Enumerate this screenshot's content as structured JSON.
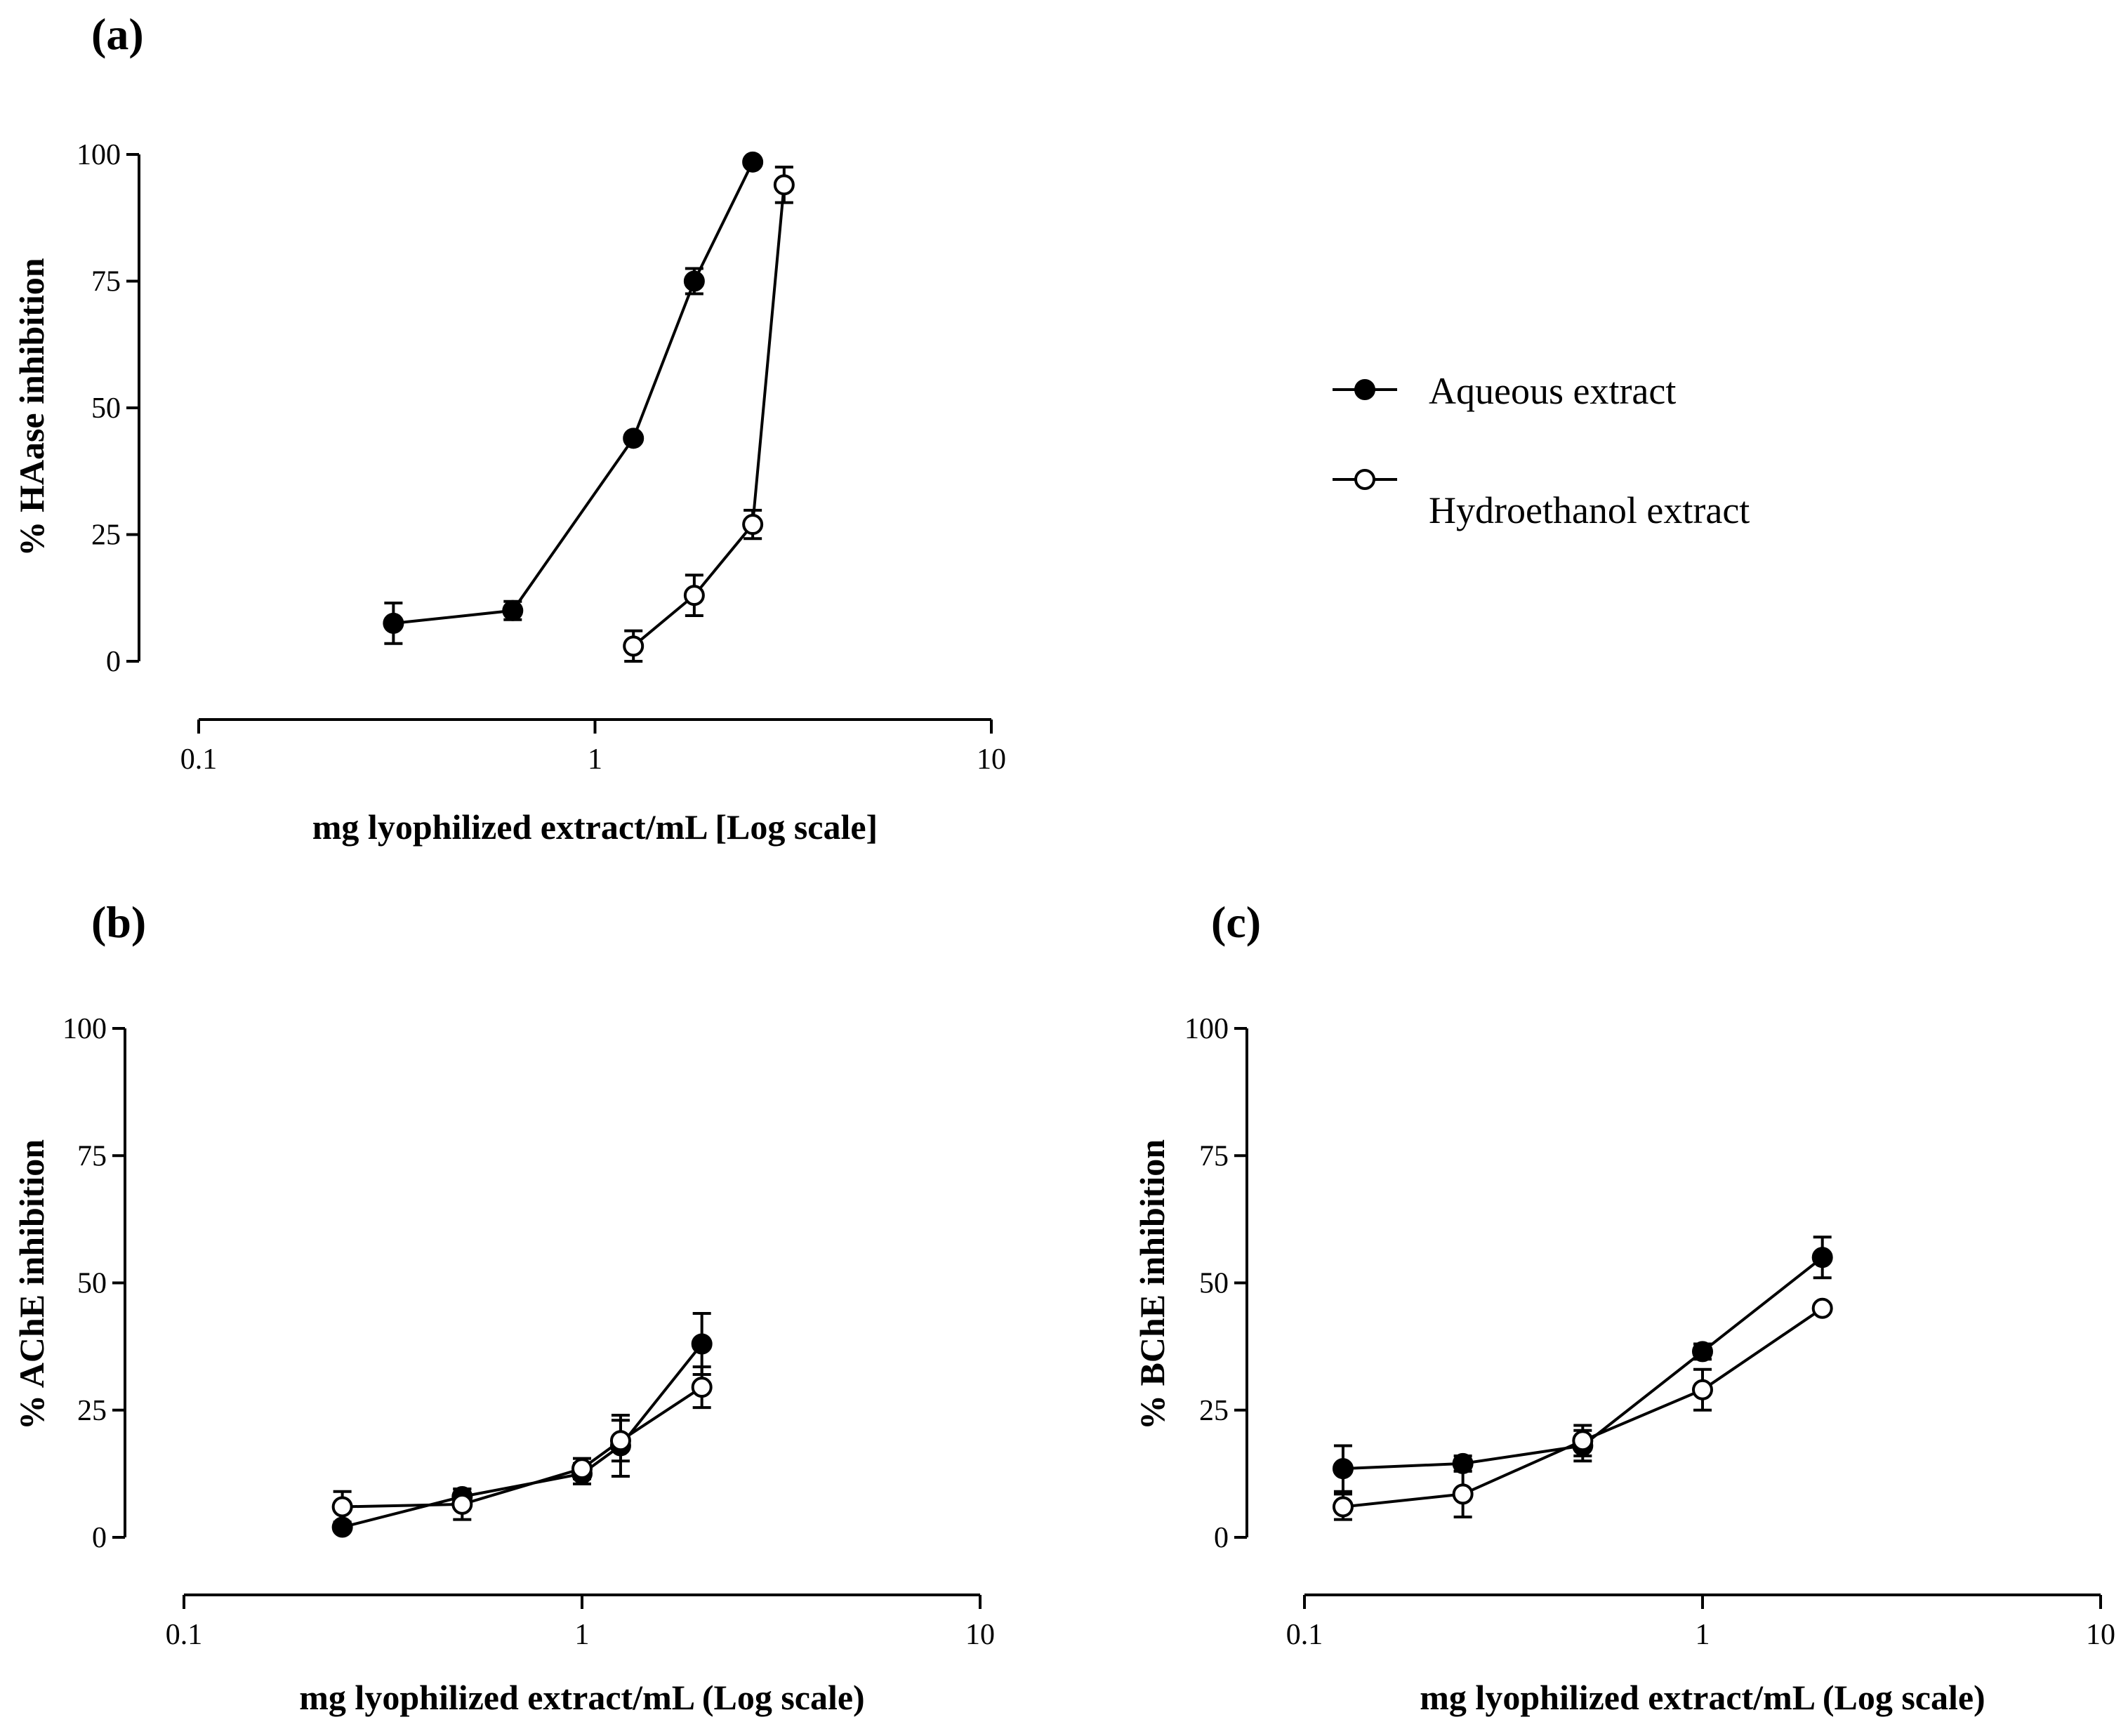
{
  "figure": {
    "legend": {
      "items": [
        {
          "label": "Aqueous extract",
          "marker": "filled-circle"
        },
        {
          "label": "Hydroethanol extract",
          "marker": "open-circle"
        }
      ]
    }
  },
  "chart_data": [
    {
      "id": "a",
      "panel_label": "(a)",
      "type": "line",
      "xscale": "log",
      "xlim": [
        0.1,
        10
      ],
      "ylim": [
        0,
        100
      ],
      "xticks": [
        {
          "v": 0.1,
          "label": "0.1"
        },
        {
          "v": 1,
          "label": "1"
        },
        {
          "v": 10,
          "label": "10"
        }
      ],
      "yticks": [
        {
          "v": 0,
          "label": "0"
        },
        {
          "v": 25,
          "label": "25"
        },
        {
          "v": 50,
          "label": "50"
        },
        {
          "v": 75,
          "label": "75"
        },
        {
          "v": 100,
          "label": "100"
        }
      ],
      "xlabel": "mg lyophilized extract/mL [Log scale]",
      "ylabel": "% HAase inhibition",
      "series": [
        {
          "name": "Aqueous extract",
          "filled": true,
          "x": [
            0.31,
            0.62,
            1.25,
            1.78,
            2.5
          ],
          "y": [
            7.5,
            10,
            44,
            75,
            98.5
          ],
          "err": [
            4,
            1.8,
            0,
            2.5,
            0
          ]
        },
        {
          "name": "Hydroethanol extract",
          "filled": false,
          "x": [
            1.25,
            1.78,
            2.5,
            3.0
          ],
          "y": [
            3,
            13,
            27,
            94
          ],
          "err": [
            3,
            4,
            2.8,
            3.5
          ]
        }
      ]
    },
    {
      "id": "b",
      "panel_label": "(b)",
      "type": "line",
      "xscale": "log",
      "xlim": [
        0.1,
        10
      ],
      "ylim": [
        0,
        100
      ],
      "xticks": [
        {
          "v": 0.1,
          "label": "0.1"
        },
        {
          "v": 1,
          "label": "1"
        },
        {
          "v": 10,
          "label": "10"
        }
      ],
      "yticks": [
        {
          "v": 0,
          "label": "0"
        },
        {
          "v": 25,
          "label": "25"
        },
        {
          "v": 50,
          "label": "50"
        },
        {
          "v": 75,
          "label": "75"
        },
        {
          "v": 100,
          "label": "100"
        }
      ],
      "xlabel": "mg lyophilized extract/mL (Log scale)",
      "ylabel": "% AChE inhibition",
      "series": [
        {
          "name": "Aqueous extract",
          "filled": true,
          "x": [
            0.25,
            0.5,
            1.0,
            1.25,
            2.0
          ],
          "y": [
            2,
            8,
            12.5,
            18,
            38
          ],
          "err": [
            0,
            1.5,
            2,
            6,
            6
          ]
        },
        {
          "name": "Hydroethanol extract",
          "filled": false,
          "x": [
            0.25,
            0.5,
            1.0,
            1.25,
            2.0
          ],
          "y": [
            6,
            6.5,
            13.5,
            19,
            29.5
          ],
          "err": [
            3,
            3,
            2,
            4,
            4
          ]
        }
      ]
    },
    {
      "id": "c",
      "panel_label": "(c)",
      "type": "line",
      "xscale": "log",
      "xlim": [
        0.1,
        10
      ],
      "ylim": [
        0,
        100
      ],
      "xticks": [
        {
          "v": 0.1,
          "label": "0.1"
        },
        {
          "v": 1,
          "label": "1"
        },
        {
          "v": 10,
          "label": "10"
        }
      ],
      "yticks": [
        {
          "v": 0,
          "label": "0"
        },
        {
          "v": 25,
          "label": "25"
        },
        {
          "v": 50,
          "label": "50"
        },
        {
          "v": 75,
          "label": "75"
        },
        {
          "v": 100,
          "label": "100"
        }
      ],
      "xlabel": "mg lyophilized extract/mL (Log scale)",
      "ylabel": "% BChE inhibition",
      "series": [
        {
          "name": "Aqueous extract",
          "filled": true,
          "x": [
            0.125,
            0.25,
            0.5,
            1.0,
            2.0
          ],
          "y": [
            13.5,
            14.5,
            18,
            36.5,
            55
          ],
          "err": [
            4.5,
            1.5,
            3,
            1.5,
            4
          ]
        },
        {
          "name": "Hydroethanol extract",
          "filled": false,
          "x": [
            0.125,
            0.25,
            0.5,
            1.0,
            2.0
          ],
          "y": [
            6,
            8.5,
            19,
            29,
            45
          ],
          "err": [
            2.5,
            4.5,
            3,
            4,
            0
          ]
        }
      ]
    }
  ]
}
